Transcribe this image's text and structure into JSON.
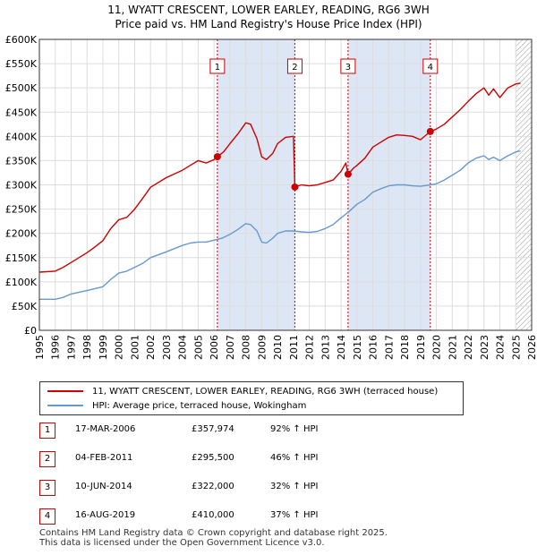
{
  "title_line1": "11, WYATT CRESCENT, LOWER EARLEY, READING, RG6 3WH",
  "title_line2": "Price paid vs. HM Land Registry's House Price Index (HPI)",
  "legend": {
    "property": "11, WYATT CRESCENT, LOWER EARLEY, READING, RG6 3WH (terraced house)",
    "hpi": "HPI: Average price, terraced house, Wokingham"
  },
  "colors": {
    "property": "#cc0000",
    "hpi": "#6699cc",
    "shade": "#dde6f5"
  },
  "sales": [
    {
      "num": "1",
      "date": "17-MAR-2006",
      "price": "£357,974",
      "pct": "92% ↑ HPI"
    },
    {
      "num": "2",
      "date": "04-FEB-2011",
      "price": "£295,500",
      "pct": "46% ↑ HPI"
    },
    {
      "num": "3",
      "date": "10-JUN-2014",
      "price": "£322,000",
      "pct": "32% ↑ HPI"
    },
    {
      "num": "4",
      "date": "16-AUG-2019",
      "price": "£410,000",
      "pct": "37% ↑ HPI"
    }
  ],
  "footer_line1": "Contains HM Land Registry data © Crown copyright and database right 2025.",
  "footer_line2": "This data is licensed under the Open Government Licence v3.0.",
  "chart_data": {
    "type": "line",
    "title": "Price paid vs. HM Land Registry's House Price Index (HPI)",
    "xlabel": "",
    "ylabel": "",
    "xlim": [
      1995,
      2026
    ],
    "ylim": [
      0,
      600000
    ],
    "x_ticks": [
      1995,
      1996,
      1997,
      1998,
      1999,
      2000,
      2001,
      2002,
      2003,
      2004,
      2005,
      2006,
      2007,
      2008,
      2009,
      2010,
      2011,
      2012,
      2013,
      2014,
      2015,
      2016,
      2017,
      2018,
      2019,
      2020,
      2021,
      2022,
      2023,
      2024,
      2025,
      2026
    ],
    "y_ticks": [
      0,
      50000,
      100000,
      150000,
      200000,
      250000,
      300000,
      350000,
      400000,
      450000,
      500000,
      550000,
      600000
    ],
    "y_tick_labels": [
      "£0",
      "£50K",
      "£100K",
      "£150K",
      "£200K",
      "£250K",
      "£300K",
      "£350K",
      "£400K",
      "£450K",
      "£500K",
      "£550K",
      "£600K"
    ],
    "shaded_ranges": [
      [
        2006.21,
        2011.09
      ],
      [
        2014.44,
        2019.62
      ]
    ],
    "hatched_from": 2025.0,
    "series": [
      {
        "name": "11, WYATT CRESCENT, LOWER EARLEY, READING, RG6 3WH (terraced house)",
        "points": [
          [
            1995.0,
            120000
          ],
          [
            1996.0,
            122000
          ],
          [
            1996.5,
            130000
          ],
          [
            1997.0,
            140000
          ],
          [
            1998.0,
            160000
          ],
          [
            1998.5,
            172000
          ],
          [
            1999.0,
            185000
          ],
          [
            1999.5,
            210000
          ],
          [
            2000.0,
            228000
          ],
          [
            2000.5,
            233000
          ],
          [
            2001.0,
            250000
          ],
          [
            2001.5,
            272000
          ],
          [
            2002.0,
            295000
          ],
          [
            2003.0,
            315000
          ],
          [
            2004.0,
            330000
          ],
          [
            2004.5,
            340000
          ],
          [
            2005.0,
            350000
          ],
          [
            2005.5,
            345000
          ],
          [
            2006.0,
            352000
          ],
          [
            2006.21,
            357974
          ],
          [
            2006.6,
            368000
          ],
          [
            2007.0,
            385000
          ],
          [
            2007.5,
            405000
          ],
          [
            2008.0,
            428000
          ],
          [
            2008.3,
            425000
          ],
          [
            2008.7,
            395000
          ],
          [
            2009.0,
            358000
          ],
          [
            2009.3,
            352000
          ],
          [
            2009.7,
            365000
          ],
          [
            2010.0,
            385000
          ],
          [
            2010.5,
            398000
          ],
          [
            2011.0,
            400000
          ],
          [
            2011.09,
            295500
          ],
          [
            2011.5,
            300000
          ],
          [
            2012.0,
            298000
          ],
          [
            2012.5,
            300000
          ],
          [
            2013.0,
            305000
          ],
          [
            2013.5,
            310000
          ],
          [
            2014.0,
            328000
          ],
          [
            2014.3,
            345000
          ],
          [
            2014.44,
            322000
          ],
          [
            2014.8,
            335000
          ],
          [
            2015.0,
            340000
          ],
          [
            2015.5,
            355000
          ],
          [
            2016.0,
            378000
          ],
          [
            2016.5,
            388000
          ],
          [
            2017.0,
            398000
          ],
          [
            2017.5,
            403000
          ],
          [
            2018.0,
            402000
          ],
          [
            2018.5,
            400000
          ],
          [
            2019.0,
            393000
          ],
          [
            2019.62,
            410000
          ],
          [
            2020.0,
            415000
          ],
          [
            2020.5,
            425000
          ],
          [
            2021.0,
            440000
          ],
          [
            2021.5,
            455000
          ],
          [
            2022.0,
            472000
          ],
          [
            2022.5,
            488000
          ],
          [
            2023.0,
            500000
          ],
          [
            2023.3,
            485000
          ],
          [
            2023.6,
            498000
          ],
          [
            2024.0,
            480000
          ],
          [
            2024.5,
            500000
          ],
          [
            2025.0,
            508000
          ],
          [
            2025.3,
            510000
          ]
        ]
      },
      {
        "name": "HPI: Average price, terraced house, Wokingham",
        "points": [
          [
            1995.0,
            64000
          ],
          [
            1996.0,
            64000
          ],
          [
            1996.5,
            68000
          ],
          [
            1997.0,
            75000
          ],
          [
            1998.0,
            82000
          ],
          [
            1998.5,
            86000
          ],
          [
            1999.0,
            90000
          ],
          [
            1999.5,
            105000
          ],
          [
            2000.0,
            118000
          ],
          [
            2000.5,
            122000
          ],
          [
            2001.0,
            130000
          ],
          [
            2001.5,
            138000
          ],
          [
            2002.0,
            150000
          ],
          [
            2003.0,
            162000
          ],
          [
            2004.0,
            175000
          ],
          [
            2004.5,
            180000
          ],
          [
            2005.0,
            182000
          ],
          [
            2005.5,
            182000
          ],
          [
            2006.0,
            186000
          ],
          [
            2006.5,
            190000
          ],
          [
            2007.0,
            198000
          ],
          [
            2007.5,
            208000
          ],
          [
            2008.0,
            220000
          ],
          [
            2008.3,
            218000
          ],
          [
            2008.7,
            205000
          ],
          [
            2009.0,
            182000
          ],
          [
            2009.3,
            180000
          ],
          [
            2009.7,
            190000
          ],
          [
            2010.0,
            200000
          ],
          [
            2010.5,
            205000
          ],
          [
            2011.0,
            205000
          ],
          [
            2011.5,
            203000
          ],
          [
            2012.0,
            202000
          ],
          [
            2012.5,
            204000
          ],
          [
            2013.0,
            210000
          ],
          [
            2013.5,
            218000
          ],
          [
            2014.0,
            232000
          ],
          [
            2014.5,
            245000
          ],
          [
            2015.0,
            260000
          ],
          [
            2015.5,
            270000
          ],
          [
            2016.0,
            285000
          ],
          [
            2016.5,
            292000
          ],
          [
            2017.0,
            298000
          ],
          [
            2017.5,
            300000
          ],
          [
            2018.0,
            300000
          ],
          [
            2018.5,
            298000
          ],
          [
            2019.0,
            297000
          ],
          [
            2019.62,
            300000
          ],
          [
            2020.0,
            302000
          ],
          [
            2020.5,
            310000
          ],
          [
            2021.0,
            320000
          ],
          [
            2021.5,
            330000
          ],
          [
            2022.0,
            345000
          ],
          [
            2022.5,
            355000
          ],
          [
            2023.0,
            360000
          ],
          [
            2023.3,
            352000
          ],
          [
            2023.6,
            357000
          ],
          [
            2024.0,
            350000
          ],
          [
            2024.5,
            360000
          ],
          [
            2025.0,
            368000
          ],
          [
            2025.3,
            370000
          ]
        ]
      }
    ],
    "sale_markers": [
      {
        "label": "1",
        "x": 2006.21,
        "y": 357974
      },
      {
        "label": "2",
        "x": 2011.09,
        "y": 295500
      },
      {
        "label": "3",
        "x": 2014.44,
        "y": 322000
      },
      {
        "label": "4",
        "x": 2019.62,
        "y": 410000
      }
    ]
  }
}
